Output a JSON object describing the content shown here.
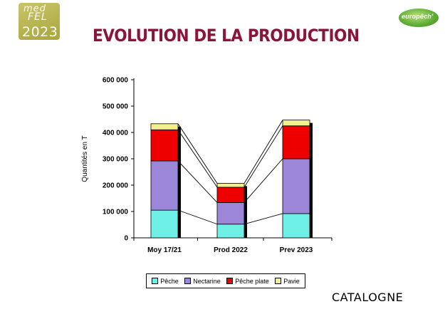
{
  "header": {
    "logo_left": {
      "line1": "med",
      "line2": "FEL",
      "line3": "2023"
    },
    "logo_right": {
      "text": "europêch'"
    },
    "title": "EVOLUTION DE LA PRODUCTION"
  },
  "footer": {
    "region": "CATALOGNE"
  },
  "colors": {
    "title": "#8b1538",
    "Pêche": "#6ef0e6",
    "Nectarine": "#9c86d8",
    "Pêche plate": "#ee0000",
    "Pavie": "#f2f08c"
  },
  "chart_data": {
    "type": "bar",
    "stacked": true,
    "title": "",
    "xlabel": "",
    "ylabel": "Quantités en T",
    "ylim": [
      0,
      600000
    ],
    "yticks": [
      0,
      100000,
      200000,
      300000,
      400000,
      500000,
      600000
    ],
    "ytick_labels": [
      "0",
      "100 000",
      "200 000",
      "300 000",
      "400 000",
      "500 000",
      "600 000"
    ],
    "categories": [
      "Moy 17/21",
      "Prod 2022",
      "Prev 2023"
    ],
    "series": [
      {
        "name": "Pêche",
        "values": [
          105000,
          52000,
          92000
        ]
      },
      {
        "name": "Nectarine",
        "values": [
          187000,
          82000,
          208000
        ]
      },
      {
        "name": "Pêche plate",
        "values": [
          118000,
          58000,
          125000
        ]
      },
      {
        "name": "Pavie",
        "values": [
          23000,
          15000,
          22000
        ]
      }
    ],
    "legend_position": "bottom",
    "series_lines": true,
    "grid": false
  }
}
